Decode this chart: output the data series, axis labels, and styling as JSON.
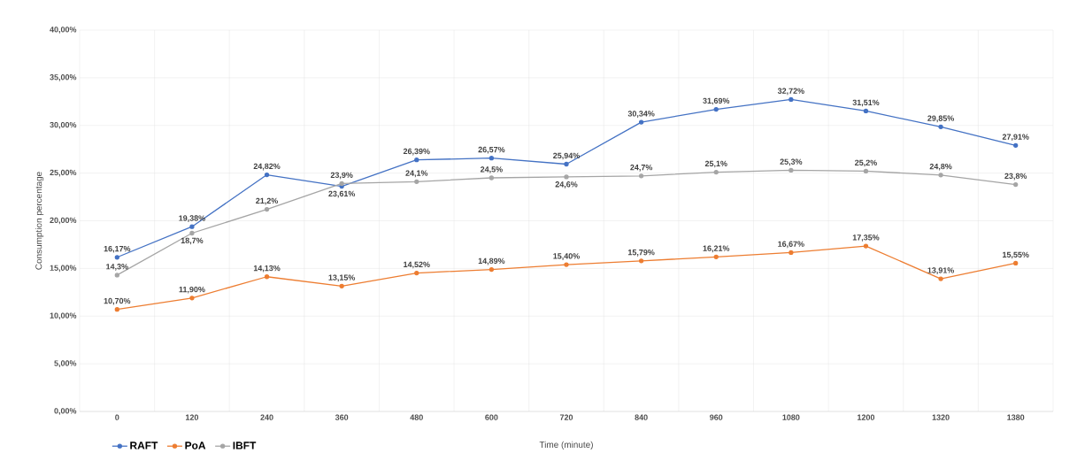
{
  "chart_data": {
    "type": "line",
    "xlabel": "Time (minute)",
    "ylabel": "Consumption percentage",
    "categories": [
      "0",
      "120",
      "240",
      "360",
      "480",
      "600",
      "720",
      "840",
      "960",
      "1080",
      "1200",
      "1320",
      "1380"
    ],
    "series": [
      {
        "name": "RAFT",
        "color": "#4472c4",
        "values": [
          16.17,
          19.38,
          24.82,
          23.61,
          26.39,
          26.57,
          25.94,
          30.34,
          31.69,
          32.72,
          31.51,
          29.85,
          27.91
        ],
        "value_labels": [
          "16,17%",
          "19,38%",
          "24,82%",
          "23,61%",
          "26,39%",
          "26,57%",
          "25,94%",
          "30,34%",
          "31,69%",
          "32,72%",
          "31,51%",
          "29,85%",
          "27,91%"
        ]
      },
      {
        "name": "PoA",
        "color": "#ed7d31",
        "values": [
          10.7,
          11.9,
          14.13,
          13.15,
          14.52,
          14.89,
          15.4,
          15.79,
          16.21,
          16.67,
          17.35,
          13.91,
          15.55
        ],
        "value_labels": [
          "10,70%",
          "11,90%",
          "14,13%",
          "13,15%",
          "14,52%",
          "14,89%",
          "15,40%",
          "15,79%",
          "16,21%",
          "16,67%",
          "17,35%",
          "13,91%",
          "15,55%"
        ]
      },
      {
        "name": "IBFT",
        "color": "#a5a5a5",
        "values": [
          14.3,
          18.7,
          21.2,
          23.9,
          24.1,
          24.5,
          24.6,
          24.7,
          25.1,
          25.3,
          25.2,
          24.8,
          23.8
        ],
        "value_labels": [
          "14,3%",
          "18,7%",
          "21,2%",
          "23,9%",
          "24,1%",
          "24,5%",
          "24,6%",
          "24,7%",
          "25,1%",
          "25,3%",
          "25,2%",
          "24,8%",
          "23,8%"
        ]
      }
    ],
    "ylim": [
      0,
      40
    ],
    "yticks": [
      {
        "value": 0,
        "label": "0,00%"
      },
      {
        "value": 5,
        "label": "5,00%"
      },
      {
        "value": 10,
        "label": "10,00%"
      },
      {
        "value": 15,
        "label": "15,00%"
      },
      {
        "value": 20,
        "label": "20,00%"
      },
      {
        "value": 25,
        "label": "25,00%"
      },
      {
        "value": 30,
        "label": "30,00%"
      },
      {
        "value": 35,
        "label": "35,00%"
      },
      {
        "value": 40,
        "label": "40,00%"
      }
    ],
    "grid": true,
    "legend": "bottom left",
    "marker": "circle",
    "line_style": "solid"
  }
}
